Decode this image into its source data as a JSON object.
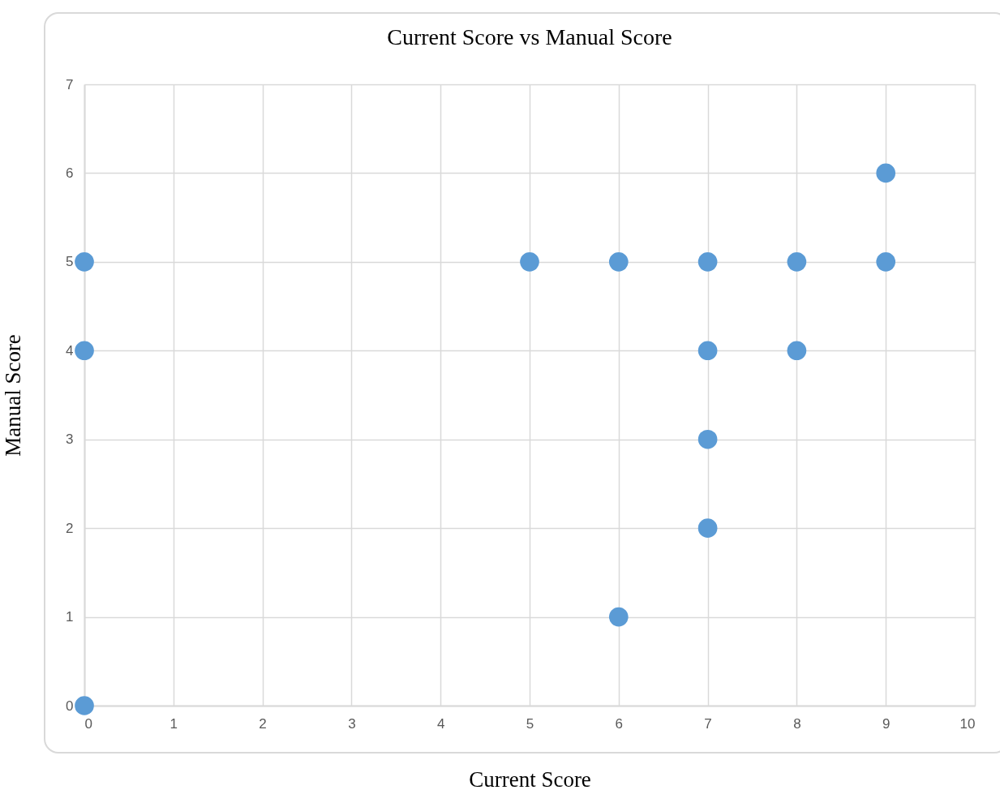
{
  "chart_data": {
    "type": "scatter",
    "title": "Current Score vs Manual Score",
    "xlabel": "Current Score",
    "ylabel": "Manual Score",
    "x": [
      0,
      0,
      0,
      5,
      6,
      6,
      7,
      7,
      7,
      7,
      8,
      8,
      9,
      9
    ],
    "values": [
      5,
      4,
      0,
      5,
      5,
      1,
      5,
      4,
      3,
      2,
      5,
      4,
      6,
      5
    ],
    "color": "#5b9bd5",
    "marker": "circle",
    "xlim": [
      0,
      10
    ],
    "xticks": [
      0,
      1,
      2,
      3,
      4,
      5,
      6,
      7,
      8,
      9,
      10
    ],
    "ylim": [
      0,
      7
    ],
    "yticks": [
      0,
      1,
      2,
      3,
      4,
      5,
      6,
      7
    ],
    "grid": true
  }
}
